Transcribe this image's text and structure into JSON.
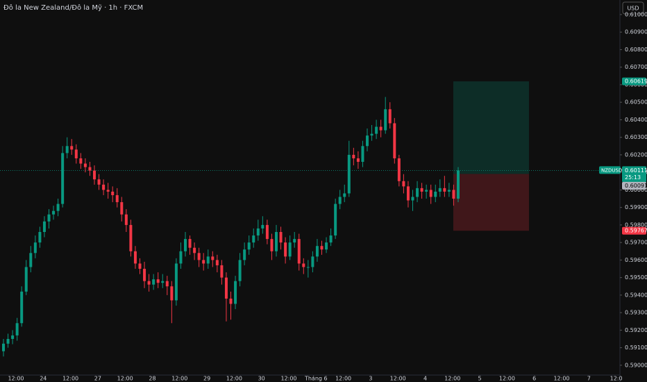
{
  "chart_data": {
    "type": "candlestick",
    "title": "Đô la New Zealand/Đô la Mỹ · 1h · FXCM",
    "currency": "USD",
    "symbol": "NZDUSD",
    "countdown": "25:13",
    "up_color": "#089981",
    "down_color": "#f23645",
    "ylim": [
      0.58944,
      0.61083
    ],
    "yticks": [
      {
        "value": 0.59,
        "label": "0.59000"
      },
      {
        "value": 0.591,
        "label": "0.59100"
      },
      {
        "value": 0.592,
        "label": "0.59200"
      },
      {
        "value": 0.593,
        "label": "0.59300"
      },
      {
        "value": 0.594,
        "label": "0.59400"
      },
      {
        "value": 0.595,
        "label": "0.59500"
      },
      {
        "value": 0.596,
        "label": "0.59600"
      },
      {
        "value": 0.597,
        "label": "0.59700"
      },
      {
        "value": 0.598,
        "label": "0.59800"
      },
      {
        "value": 0.599,
        "label": "0.59900"
      },
      {
        "value": 0.6,
        "label": "0.60000"
      },
      {
        "value": 0.601,
        "label": "0.60100"
      },
      {
        "value": 0.602,
        "label": "0.60200"
      },
      {
        "value": 0.603,
        "label": "0.60300"
      },
      {
        "value": 0.604,
        "label": "0.60400"
      },
      {
        "value": 0.605,
        "label": "0.60500"
      },
      {
        "value": 0.606,
        "label": "0.60600"
      },
      {
        "value": 0.607,
        "label": "0.60700"
      },
      {
        "value": 0.608,
        "label": "0.60800"
      },
      {
        "value": 0.609,
        "label": "0.60900"
      },
      {
        "value": 0.61,
        "label": "0.61000"
      }
    ],
    "xtick_labels": [
      "12:00",
      "24",
      "12:00",
      "27",
      "12:00",
      "28",
      "12:00",
      "29",
      "12:00",
      "30",
      "12:00",
      "Tháng 6",
      "12:00",
      "3",
      "12:00",
      "4",
      "12:00",
      "5",
      "12:00",
      "6",
      "12:00",
      "7",
      "12:0"
    ],
    "grid": false,
    "last_price": 0.60111,
    "entry_price": 0.60091,
    "take_profit": 0.60619,
    "stop_loss": 0.59767,
    "open": [
      0.5908,
      0.59123,
      0.5915,
      0.5917,
      0.5924,
      0.5942,
      0.5956,
      0.5964,
      0.597,
      0.5976,
      0.5982,
      0.5986,
      0.5988,
      0.5992,
      0.6021,
      0.6025,
      0.6023,
      0.6018,
      0.6015,
      0.6013,
      0.6011,
      0.6006,
      0.6003,
      0.6,
      0.5999,
      0.5997,
      0.5993,
      0.5986,
      0.598,
      0.5965,
      0.5958,
      0.5955,
      0.5948,
      0.5946,
      0.5949,
      0.5947,
      0.5948,
      0.5945,
      0.5937,
      0.5958,
      0.5965,
      0.5972,
      0.5967,
      0.5964,
      0.596,
      0.5958,
      0.5962,
      0.596,
      0.5957,
      0.595,
      0.5938,
      0.5935,
      0.5948,
      0.596,
      0.5966,
      0.597,
      0.5974,
      0.5978,
      0.598,
      0.5972,
      0.5965,
      0.5976,
      0.597,
      0.5962,
      0.597,
      0.5972,
      0.5958,
      0.5956,
      0.5956,
      0.5962,
      0.5968,
      0.5966,
      0.597,
      0.5974,
      0.5992,
      0.5996,
      0.5998,
      0.602,
      0.6018,
      0.6016,
      0.6025,
      0.6031,
      0.6032,
      0.6036,
      0.6034,
      0.6046,
      0.6038,
      0.6018,
      0.6005,
      0.6002,
      0.5994,
      0.5996,
      0.6001,
      0.5999,
      0.6,
      0.5996,
      0.5999,
      0.6001,
      0.5999,
      0.6,
      0.5995
    ],
    "high": [
      0.5915,
      0.5918,
      0.592,
      0.5927,
      0.5945,
      0.596,
      0.5968,
      0.5974,
      0.5979,
      0.5985,
      0.5989,
      0.5991,
      0.5995,
      0.6025,
      0.603,
      0.6029,
      0.6026,
      0.6021,
      0.6018,
      0.6016,
      0.6014,
      0.6009,
      0.6006,
      0.6004,
      0.6002,
      0.6001,
      0.5996,
      0.5989,
      0.5983,
      0.5968,
      0.5961,
      0.5959,
      0.5952,
      0.5952,
      0.5953,
      0.5952,
      0.5951,
      0.5948,
      0.5961,
      0.597,
      0.5976,
      0.5974,
      0.597,
      0.5967,
      0.5964,
      0.5966,
      0.5965,
      0.5963,
      0.596,
      0.5953,
      0.5942,
      0.5951,
      0.5964,
      0.597,
      0.5974,
      0.5978,
      0.5983,
      0.5985,
      0.5983,
      0.5975,
      0.598,
      0.5979,
      0.5973,
      0.5974,
      0.5976,
      0.5975,
      0.5961,
      0.596,
      0.5965,
      0.5972,
      0.5971,
      0.5973,
      0.5978,
      0.5995,
      0.6,
      0.6003,
      0.6028,
      0.6024,
      0.6022,
      0.6028,
      0.6035,
      0.6037,
      0.604,
      0.604,
      0.6053,
      0.605,
      0.6041,
      0.602,
      0.6009,
      0.6005,
      0.6,
      0.6005,
      0.6004,
      0.6003,
      0.6003,
      0.6003,
      0.6006,
      0.6008,
      0.6004,
      0.6003,
      0.6013
    ],
    "low": [
      0.5905,
      0.591,
      0.5912,
      0.5914,
      0.5922,
      0.594,
      0.5953,
      0.5961,
      0.5967,
      0.5973,
      0.5978,
      0.5983,
      0.5985,
      0.599,
      0.6018,
      0.602,
      0.6015,
      0.6012,
      0.601,
      0.6008,
      0.6003,
      0.6,
      0.5997,
      0.5995,
      0.5993,
      0.599,
      0.5982,
      0.5976,
      0.5962,
      0.5955,
      0.5952,
      0.5944,
      0.5942,
      0.5943,
      0.5944,
      0.5944,
      0.594,
      0.5924,
      0.5934,
      0.5955,
      0.5962,
      0.5963,
      0.596,
      0.5956,
      0.5954,
      0.5955,
      0.5956,
      0.5953,
      0.5946,
      0.5925,
      0.5926,
      0.5932,
      0.5945,
      0.5957,
      0.5963,
      0.5967,
      0.5971,
      0.5975,
      0.5969,
      0.596,
      0.5962,
      0.5966,
      0.5958,
      0.596,
      0.5967,
      0.5954,
      0.5952,
      0.595,
      0.5953,
      0.5959,
      0.5963,
      0.5964,
      0.5968,
      0.5972,
      0.5989,
      0.5993,
      0.5996,
      0.6014,
      0.6012,
      0.6013,
      0.6022,
      0.6028,
      0.6029,
      0.603,
      0.6032,
      0.6035,
      0.6015,
      0.6002,
      0.5998,
      0.599,
      0.5988,
      0.5993,
      0.5995,
      0.5995,
      0.5992,
      0.5993,
      0.5996,
      0.5996,
      0.5996,
      0.5991,
      0.5993
    ],
    "close": [
      0.59123,
      0.5915,
      0.5917,
      0.5924,
      0.5942,
      0.5956,
      0.5964,
      0.597,
      0.5976,
      0.5982,
      0.5986,
      0.5988,
      0.5992,
      0.6021,
      0.6025,
      0.6023,
      0.6018,
      0.6015,
      0.6013,
      0.6011,
      0.6006,
      0.6003,
      0.6,
      0.5999,
      0.5997,
      0.5993,
      0.5986,
      0.598,
      0.5965,
      0.5958,
      0.5955,
      0.5948,
      0.5946,
      0.5949,
      0.5947,
      0.5948,
      0.5945,
      0.5937,
      0.5958,
      0.5965,
      0.5972,
      0.5967,
      0.5964,
      0.596,
      0.5958,
      0.5962,
      0.596,
      0.5957,
      0.595,
      0.5938,
      0.5935,
      0.5948,
      0.596,
      0.5966,
      0.597,
      0.5974,
      0.5978,
      0.598,
      0.5972,
      0.5965,
      0.5976,
      0.597,
      0.5962,
      0.597,
      0.5972,
      0.5958,
      0.5956,
      0.5956,
      0.5962,
      0.5968,
      0.5966,
      0.597,
      0.5974,
      0.5992,
      0.5996,
      0.5998,
      0.602,
      0.6018,
      0.6016,
      0.6025,
      0.6031,
      0.6032,
      0.6036,
      0.6034,
      0.6046,
      0.6038,
      0.6018,
      0.6005,
      0.6002,
      0.5994,
      0.5996,
      0.6001,
      0.5999,
      0.6,
      0.5996,
      0.5999,
      0.6001,
      0.5999,
      0.6,
      0.5995,
      0.60111
    ]
  }
}
